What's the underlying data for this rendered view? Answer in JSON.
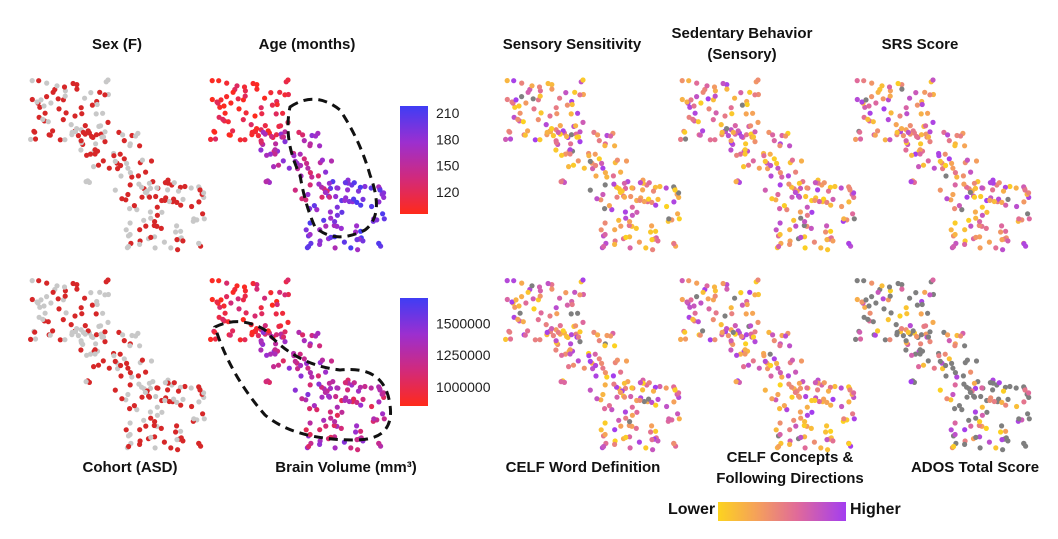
{
  "chart_data": [
    {
      "type": "scatter",
      "title": "Sex (F)",
      "coloring": "categorical",
      "colors": [
        "#d62728",
        "#c8c8c8"
      ]
    },
    {
      "type": "scatter",
      "title": "Age (months)",
      "coloring": "continuous",
      "cmap": [
        "#ff2a1a",
        "#d12a7c",
        "#9b2fd0",
        "#3f3df5"
      ],
      "colorbar": {
        "min": 95,
        "max": 218,
        "ticks": [
          210,
          180,
          150,
          120
        ]
      },
      "outline": true
    },
    {
      "type": "scatter",
      "title": "Sensory Sensitivity",
      "coloring": "continuous",
      "cmap": [
        "#fcd31f",
        "#f5a15a",
        "#e06a9a",
        "#a33df0"
      ],
      "missing_color": "#7f7f7f"
    },
    {
      "type": "scatter",
      "title_lines": [
        "Sedentary Behavior",
        "(Sensory)"
      ],
      "coloring": "continuous",
      "cmap": [
        "#fcd31f",
        "#f5a15a",
        "#e06a9a",
        "#a33df0"
      ],
      "missing_color": "#7f7f7f"
    },
    {
      "type": "scatter",
      "title": "SRS Score",
      "coloring": "continuous",
      "cmap": [
        "#fcd31f",
        "#f5a15a",
        "#e06a9a",
        "#a33df0"
      ],
      "missing_color": "#7f7f7f"
    },
    {
      "type": "scatter",
      "title": "Cohort (ASD)",
      "coloring": "categorical",
      "colors": [
        "#d62728",
        "#c8c8c8"
      ]
    },
    {
      "type": "scatter",
      "title": "Brain Volume (mm³)",
      "coloring": "continuous",
      "cmap": [
        "#ff2a1a",
        "#d12a7c",
        "#9b2fd0",
        "#3f3df5"
      ],
      "colorbar": {
        "min": 850000,
        "max": 1700000,
        "ticks": [
          1500000,
          1250000,
          1000000
        ]
      },
      "outline": true
    },
    {
      "type": "scatter",
      "title": "CELF Word Definition",
      "coloring": "continuous",
      "cmap": [
        "#fcd31f",
        "#f5a15a",
        "#e06a9a",
        "#a33df0"
      ],
      "missing_color": "#7f7f7f"
    },
    {
      "type": "scatter",
      "title_lines": [
        "CELF Concepts &",
        "Following Directions"
      ],
      "coloring": "continuous",
      "cmap": [
        "#fcd31f",
        "#f5a15a",
        "#e06a9a",
        "#a33df0"
      ],
      "missing_color": "#7f7f7f"
    },
    {
      "type": "scatter",
      "title": "ADOS Total Score",
      "coloring": "continuous",
      "cmap": [
        "#fcd31f",
        "#f5a15a",
        "#e06a9a",
        "#a33df0"
      ],
      "missing_color": "#7f7f7f"
    }
  ],
  "legend": {
    "low": "Lower",
    "high": "Higher"
  }
}
